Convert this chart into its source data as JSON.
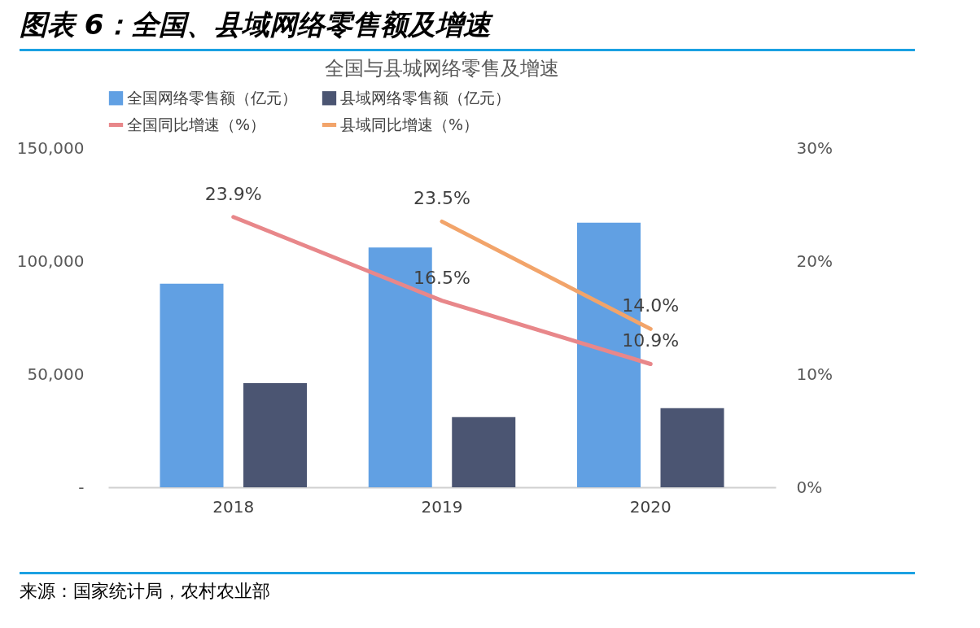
{
  "chart_data": {
    "type": "bar",
    "title": "图表 6：全国、县域网络零售额及增速",
    "subtitle": "全国与县城网络零售及增速",
    "categories": [
      "2018",
      "2019",
      "2020"
    ],
    "series": [
      {
        "name": "全国网络零售额（亿元）",
        "color": "#61a0e3",
        "values": [
          90000,
          106000,
          117000
        ]
      },
      {
        "name": "县域网络零售额（亿元）",
        "color": "#4b5572",
        "values": [
          46000,
          31000,
          35000
        ]
      },
      {
        "name": "全国同比增速（%）",
        "type": "line",
        "axis": "y2",
        "color": "#e8878a",
        "values": [
          23.9,
          16.5,
          10.9
        ],
        "value_labels": [
          "23.9%",
          "16.5%",
          "10.9%"
        ]
      },
      {
        "name": "县域同比增速（%）",
        "type": "line",
        "axis": "y2",
        "color": "#f2a46a",
        "values": [
          null,
          23.5,
          14.0
        ],
        "value_labels": [
          null,
          "23.5%",
          "14.0%"
        ]
      }
    ],
    "ylim": [
      0,
      150000
    ],
    "yticks": [
      {
        "value": 0,
        "label": "-"
      },
      {
        "value": 50000,
        "label": "50,000"
      },
      {
        "value": 100000,
        "label": "100,000"
      },
      {
        "value": 150000,
        "label": "150,000"
      }
    ],
    "y2lim": [
      0,
      30
    ],
    "y2ticks": [
      {
        "value": 0,
        "label": "0%"
      },
      {
        "value": 10,
        "label": "10%"
      },
      {
        "value": 20,
        "label": "20%"
      },
      {
        "value": 30,
        "label": "30%"
      }
    ],
    "legend": "top",
    "grid": false,
    "annotations": [
      "来源：国家统计局，农村农业部"
    ]
  }
}
